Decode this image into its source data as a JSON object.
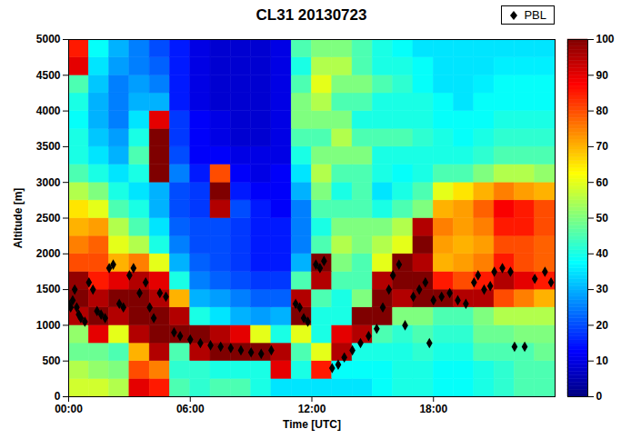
{
  "chart_data": {
    "type": "heatmap",
    "title": "CL31 20130723",
    "x_label": "Time [UTC]",
    "y_label": "Altitude [m]",
    "xlim": [
      0,
      24
    ],
    "xticks": [
      {
        "value": 0,
        "label": "00:00"
      },
      {
        "value": 6,
        "label": "06:00"
      },
      {
        "value": 12,
        "label": "12:00"
      },
      {
        "value": 18,
        "label": "18:00"
      }
    ],
    "ylim": [
      0,
      5000
    ],
    "yticks": [
      0,
      500,
      1000,
      1500,
      2000,
      2500,
      3000,
      3500,
      4000,
      4500,
      5000
    ],
    "legend": "top-right",
    "cells": {
      "x_edges": [
        0,
        1,
        2,
        3,
        4,
        5,
        6,
        7,
        8,
        9,
        10,
        11,
        12,
        13,
        14,
        15,
        16,
        17,
        18,
        19,
        20,
        21,
        22,
        23,
        24
      ],
      "y_edges": [
        0,
        250,
        500,
        750,
        1000,
        1250,
        1500,
        1750,
        2000,
        2250,
        2500,
        2750,
        3000,
        3250,
        3500,
        3750,
        4000,
        4250,
        4500,
        4750,
        5000
      ],
      "values": [
        [
          58,
          58,
          55,
          90,
          85,
          45,
          42,
          45,
          45,
          40,
          35,
          35,
          35,
          35,
          35,
          38,
          40,
          40,
          38,
          38,
          40,
          42,
          45,
          45
        ],
        [
          55,
          52,
          50,
          80,
          75,
          42,
          42,
          40,
          40,
          40,
          90,
          40,
          85,
          38,
          38,
          38,
          40,
          40,
          38,
          38,
          40,
          42,
          45,
          45
        ],
        [
          48,
          48,
          45,
          70,
          95,
          45,
          95,
          100,
          100,
          100,
          95,
          45,
          60,
          95,
          40,
          40,
          40,
          42,
          40,
          40,
          45,
          45,
          45,
          48
        ],
        [
          52,
          90,
          60,
          95,
          100,
          100,
          100,
          95,
          90,
          60,
          40,
          60,
          40,
          90,
          95,
          45,
          42,
          45,
          42,
          42,
          48,
          48,
          50,
          50
        ],
        [
          95,
          100,
          95,
          100,
          100,
          95,
          40,
          35,
          30,
          28,
          30,
          100,
          40,
          40,
          100,
          100,
          50,
          50,
          45,
          45,
          50,
          55,
          55,
          55
        ],
        [
          100,
          95,
          100,
          100,
          95,
          70,
          30,
          28,
          25,
          22,
          22,
          95,
          45,
          40,
          50,
          100,
          95,
          100,
          100,
          95,
          95,
          80,
          75,
          70
        ],
        [
          98,
          85,
          90,
          95,
          90,
          40,
          25,
          22,
          20,
          18,
          18,
          45,
          95,
          45,
          45,
          95,
          100,
          100,
          85,
          80,
          85,
          95,
          90,
          85
        ],
        [
          80,
          80,
          70,
          75,
          60,
          30,
          22,
          20,
          18,
          15,
          15,
          30,
          100,
          50,
          45,
          60,
          100,
          95,
          70,
          72,
          75,
          85,
          80,
          78
        ],
        [
          75,
          78,
          60,
          55,
          40,
          25,
          20,
          20,
          18,
          15,
          15,
          25,
          45,
          55,
          50,
          55,
          60,
          100,
          72,
          70,
          72,
          80,
          80,
          78
        ],
        [
          70,
          72,
          55,
          45,
          35,
          22,
          20,
          20,
          18,
          15,
          15,
          25,
          40,
          50,
          50,
          50,
          55,
          95,
          75,
          72,
          75,
          85,
          85,
          80
        ],
        [
          65,
          60,
          45,
          40,
          30,
          20,
          18,
          95,
          20,
          15,
          12,
          25,
          45,
          45,
          45,
          40,
          45,
          50,
          70,
          72,
          78,
          88,
          85,
          80
        ],
        [
          55,
          50,
          40,
          35,
          30,
          20,
          18,
          100,
          15,
          12,
          12,
          30,
          50,
          40,
          45,
          35,
          40,
          45,
          60,
          65,
          70,
          75,
          72,
          70
        ],
        [
          45,
          40,
          35,
          40,
          100,
          25,
          15,
          80,
          12,
          10,
          12,
          35,
          55,
          45,
          45,
          40,
          38,
          40,
          45,
          45,
          50,
          55,
          55,
          52
        ],
        [
          40,
          35,
          30,
          45,
          100,
          20,
          12,
          12,
          10,
          10,
          10,
          40,
          50,
          50,
          50,
          40,
          40,
          40,
          40,
          40,
          42,
          45,
          45,
          45
        ],
        [
          40,
          32,
          28,
          40,
          100,
          18,
          12,
          10,
          8,
          8,
          10,
          45,
          45,
          55,
          45,
          45,
          45,
          42,
          40,
          38,
          40,
          42,
          42,
          42
        ],
        [
          38,
          30,
          25,
          35,
          90,
          18,
          12,
          10,
          8,
          8,
          10,
          50,
          50,
          50,
          40,
          40,
          40,
          40,
          38,
          38,
          38,
          40,
          40,
          40
        ],
        [
          40,
          30,
          25,
          30,
          30,
          15,
          10,
          8,
          8,
          8,
          10,
          50,
          55,
          45,
          45,
          40,
          40,
          40,
          38,
          35,
          38,
          38,
          38,
          38
        ],
        [
          45,
          32,
          25,
          28,
          25,
          15,
          10,
          8,
          8,
          8,
          10,
          45,
          60,
          50,
          50,
          45,
          42,
          38,
          35,
          35,
          36,
          38,
          38,
          38
        ],
        [
          90,
          35,
          28,
          25,
          22,
          15,
          10,
          8,
          8,
          8,
          10,
          40,
          55,
          55,
          45,
          40,
          40,
          38,
          35,
          35,
          35,
          36,
          36,
          36
        ],
        [
          85,
          38,
          30,
          25,
          20,
          15,
          10,
          8,
          8,
          8,
          10,
          45,
          50,
          50,
          45,
          40,
          38,
          35,
          35,
          35,
          35,
          35,
          35,
          35
        ]
      ]
    },
    "colorbar": {
      "range": [
        0,
        100
      ],
      "ticks": [
        0,
        10,
        20,
        30,
        40,
        50,
        60,
        70,
        80,
        90,
        100
      ]
    },
    "series": [
      {
        "name": "PBL",
        "type": "scatter",
        "color": "#000000",
        "marker": "diamond",
        "x": [
          0.0,
          0.1,
          0.2,
          0.3,
          0.4,
          0.5,
          0.6,
          0.8,
          1.0,
          1.2,
          1.4,
          1.6,
          1.8,
          2.0,
          2.2,
          2.5,
          2.7,
          3.0,
          3.2,
          3.5,
          3.8,
          4.0,
          4.2,
          4.5,
          4.8,
          5.2,
          5.5,
          6.0,
          6.5,
          7.0,
          7.5,
          8.0,
          8.5,
          9.0,
          9.5,
          10.0,
          11.2,
          11.4,
          11.6,
          11.8,
          12.2,
          12.4,
          12.6,
          13.0,
          13.3,
          13.6,
          14.0,
          14.4,
          14.8,
          15.2,
          15.5,
          15.8,
          16.0,
          16.3,
          16.6,
          17.0,
          17.3,
          17.6,
          17.8,
          18.0,
          18.4,
          18.8,
          19.2,
          19.6,
          20.0,
          20.2,
          20.5,
          20.8,
          21.0,
          21.4,
          21.8,
          22.0,
          22.5,
          23.0,
          23.5,
          23.8
        ],
        "values": [
          1300,
          1250,
          1350,
          1500,
          1250,
          1150,
          1100,
          1050,
          1600,
          1500,
          1200,
          1150,
          1100,
          1800,
          1850,
          1300,
          1250,
          1700,
          1800,
          1450,
          1600,
          1250,
          1100,
          1450,
          1400,
          900,
          850,
          800,
          750,
          720,
          700,
          680,
          650,
          620,
          600,
          650,
          1300,
          1250,
          1100,
          1050,
          1850,
          1800,
          1900,
          400,
          450,
          550,
          650,
          750,
          850,
          950,
          1250,
          1500,
          1700,
          1850,
          1000,
          1400,
          1500,
          1600,
          750,
          1350,
          1400,
          1450,
          1350,
          1300,
          1600,
          1700,
          1500,
          1550,
          1750,
          1800,
          1750,
          700,
          700,
          1650,
          1750,
          1600
        ]
      }
    ]
  }
}
